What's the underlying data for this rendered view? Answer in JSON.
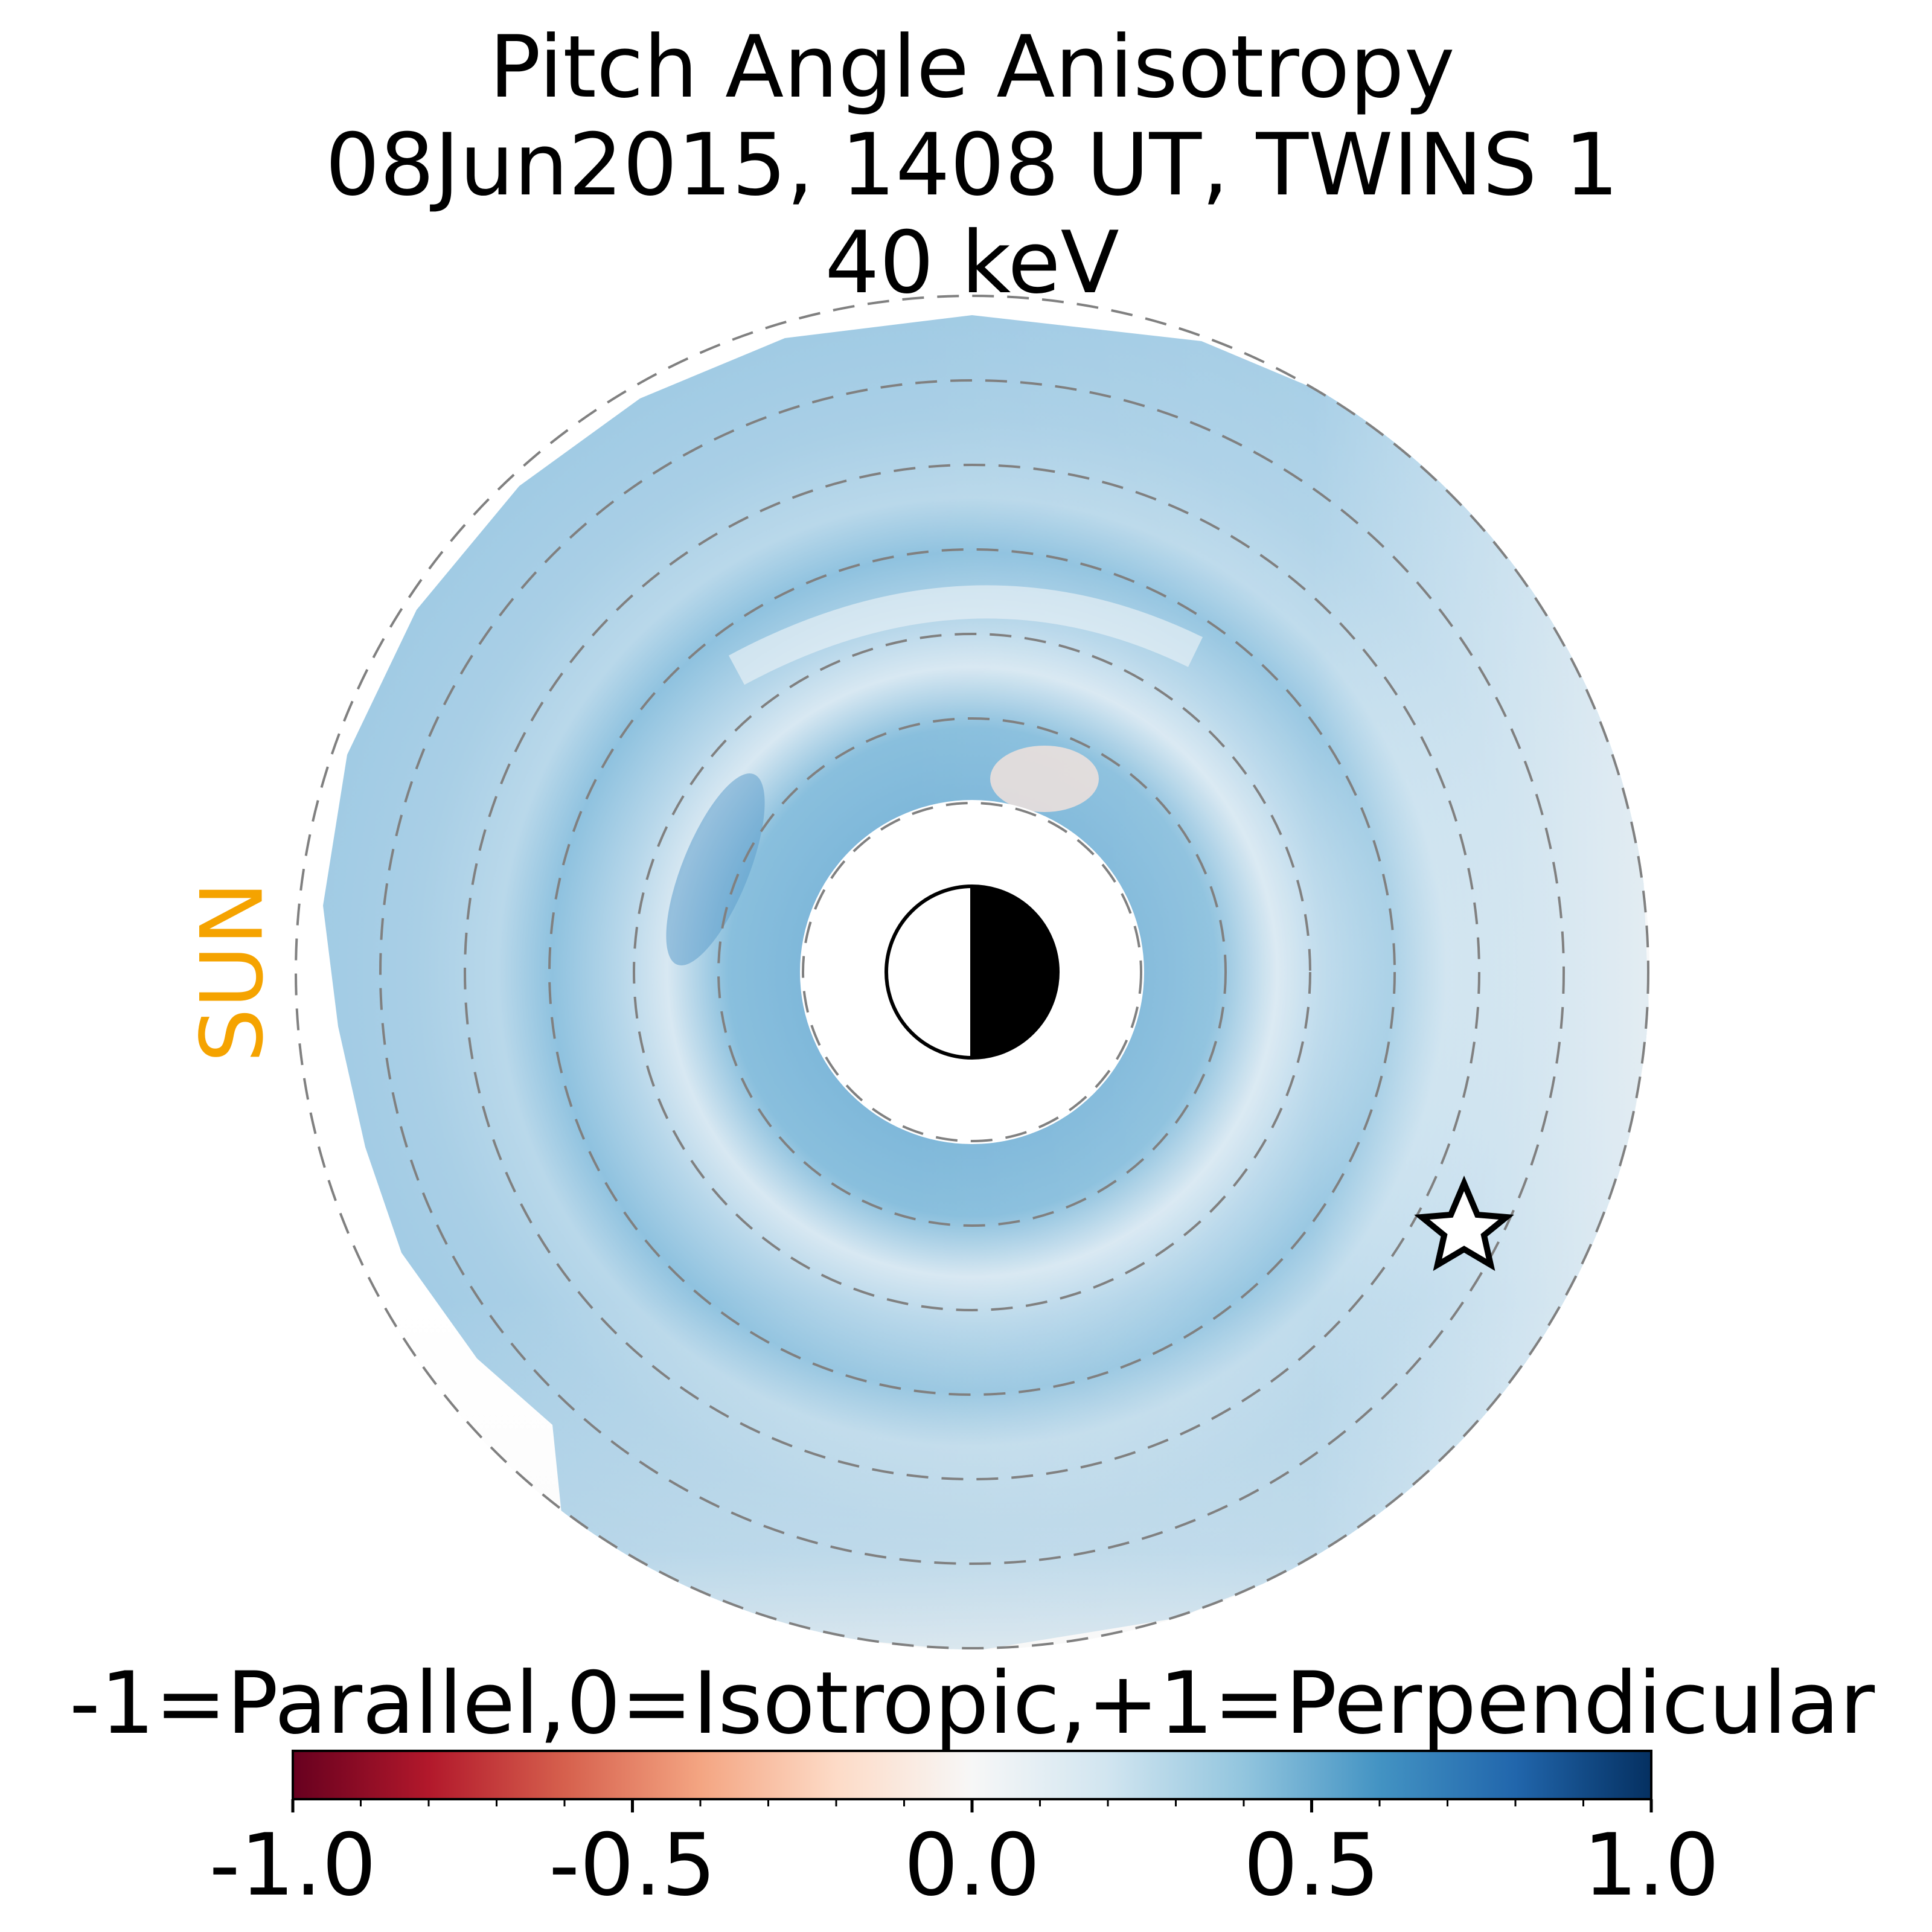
{
  "chart_data": {
    "type": "heatmap",
    "title_lines": [
      "Pitch Angle Anisotropy",
      "08Jun2015, 1408 UT,  TWINS 1",
      "40 keV"
    ],
    "sun_label": "SUN",
    "colorbar": {
      "label": "-1=Parallel,0=Isotropic,+1=Perpendicular",
      "range": [
        -1.0,
        1.0
      ],
      "ticks": [
        -1.0,
        -0.5,
        0.0,
        0.5,
        1.0
      ],
      "tick_labels": [
        "-1.0",
        "-0.5",
        "0.0",
        "0.5",
        "1.0"
      ],
      "minor_tick_step": 0.1,
      "colormap": "RdBu",
      "colormap_stops": [
        "#67001f",
        "#b2182b",
        "#d6604d",
        "#f4a582",
        "#fddbc7",
        "#f7f7f7",
        "#d1e5f0",
        "#92c5de",
        "#4393c3",
        "#2166ac",
        "#053061"
      ]
    },
    "grid": true,
    "earth_symbol": "half-dark disk, night side facing away from sun",
    "star_marker": "open star",
    "colors": {
      "sun_label": "#f5a300",
      "grid_circles": "#808080"
    },
    "rings": [
      {
        "ring": 1,
        "anisotropy": 0.43
      },
      {
        "ring": 2,
        "anisotropy": 0.38
      },
      {
        "ring": 3,
        "anisotropy": 0.3
      },
      {
        "ring": 4,
        "anisotropy": 0.28
      },
      {
        "ring": 5,
        "anisotropy": 0.34
      },
      {
        "ring": 6,
        "anisotropy": 0.27
      },
      {
        "ring": 7,
        "anisotropy": 0.3
      },
      {
        "ring": 8,
        "anisotropy": 0.3
      }
    ]
  }
}
